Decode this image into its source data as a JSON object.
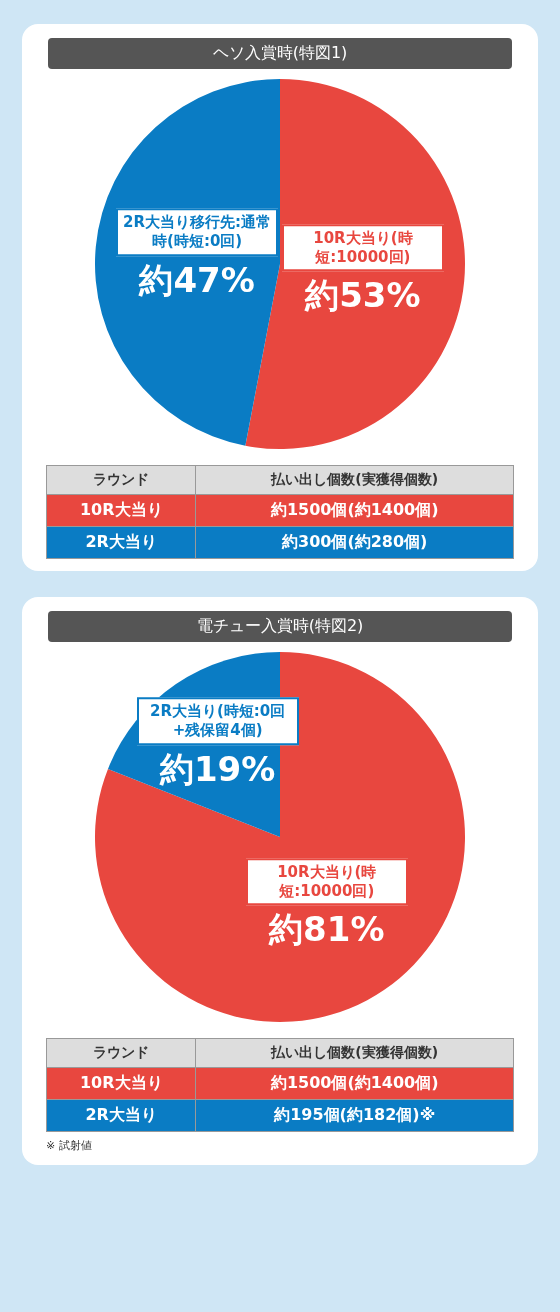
{
  "chart_data": [
    {
      "type": "pie",
      "title": "ヘソ入賞時(特図1)",
      "categories": [
        "10R大当り(時短:10000回)",
        "2R大当り移行先:通常時(時短:0回)"
      ],
      "values": [
        53,
        47
      ],
      "value_labels": [
        "約53%",
        "約47%"
      ],
      "colors": [
        "#e8473f",
        "#0a7cc4"
      ],
      "annotations": [
        "ラウンド",
        "払い出し個数(実獲得個数)",
        "10R大当り",
        "約1500個(約1400個)",
        "2R大当り",
        "約300個(約280個)"
      ]
    },
    {
      "type": "pie",
      "title": "電チュー入賞時(特図2)",
      "categories": [
        "10R大当り(時短:10000回)",
        "2R大当り(時短:0回+残保留4個)"
      ],
      "values": [
        81,
        19
      ],
      "value_labels": [
        "約81%",
        "約19%"
      ],
      "colors": [
        "#e8473f",
        "#0a7cc4"
      ],
      "annotations": [
        "ラウンド",
        "払い出し個数(実獲得個数)",
        "10R大当り",
        "約1500個(約1400個)",
        "2R大当り",
        "約195個(約182個)※",
        "※ 試射値"
      ]
    }
  ]
}
